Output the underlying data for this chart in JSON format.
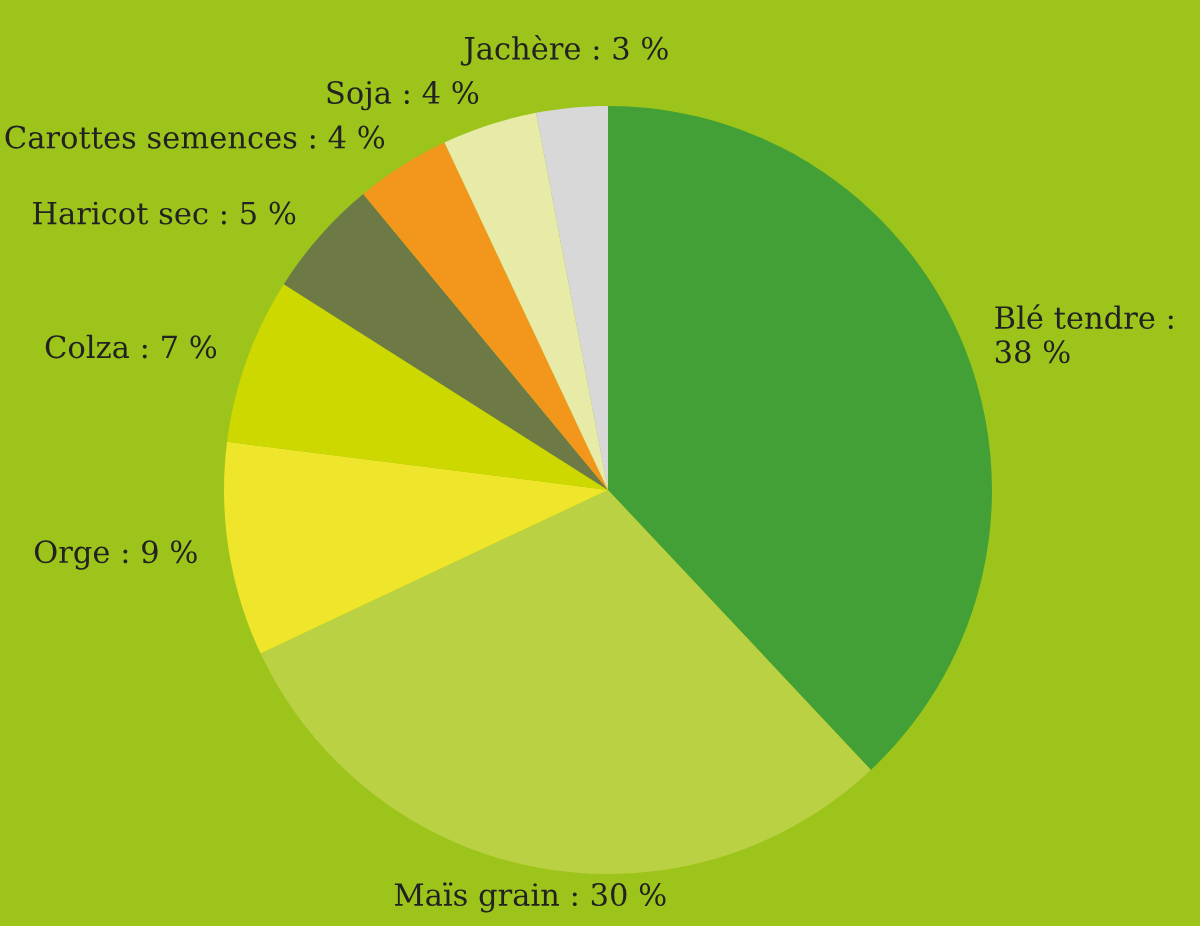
{
  "chart_data": {
    "type": "pie",
    "categories": [
      "Blé tendre :\n38 %",
      "Maïs grain : 30 %",
      "Orge : 9 %",
      "Colza : 7 %",
      "Haricot sec : 5 %",
      "Carottes semences : 4 %",
      "Soja : 4 %",
      "Jachère : 3 %"
    ],
    "values": [
      38,
      30,
      9,
      7,
      5,
      4,
      4,
      3
    ],
    "colors": [
      "#43a036",
      "#b9d142",
      "#efe52a",
      "#cdd800",
      "#6e7a45",
      "#f3961c",
      "#e8eaa8",
      "#d8d8d8"
    ],
    "legend": false
  }
}
